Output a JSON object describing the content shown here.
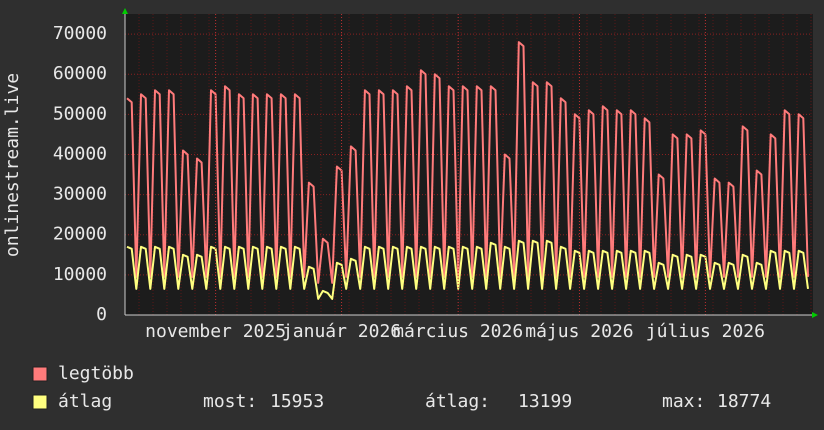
{
  "chart_data": {
    "type": "line",
    "y_label": "onlinestream.live",
    "categories": [
      null,
      null,
      null,
      null,
      null,
      null,
      null,
      null,
      null,
      null,
      null,
      null,
      null,
      null,
      null,
      null,
      null,
      null,
      null,
      "november 2025",
      null,
      null,
      null,
      null,
      null,
      null,
      null,
      null,
      null,
      null,
      null,
      null,
      null,
      null,
      null,
      null,
      null,
      null,
      null,
      null,
      null,
      null,
      null,
      null,
      null,
      null,
      "január 2026",
      null,
      null,
      null,
      null,
      null,
      null,
      null,
      null,
      null,
      null,
      null,
      null,
      null,
      null,
      null,
      null,
      null,
      null,
      null,
      null,
      null,
      null,
      null,
      null,
      "március 2026",
      null,
      null,
      null,
      null,
      null,
      null,
      null,
      null,
      null,
      null,
      null,
      null,
      null,
      null,
      null,
      null,
      null,
      null,
      null,
      null,
      null,
      null,
      null,
      null,
      null,
      "május 2026",
      null,
      null,
      null,
      null,
      null,
      null,
      null,
      null,
      null,
      null,
      null,
      null,
      null,
      null,
      null,
      null,
      null,
      null,
      null,
      null,
      null,
      null,
      null,
      null,
      null,
      null,
      "július 2026",
      null,
      null,
      null,
      null,
      null,
      null,
      null,
      null,
      null,
      null,
      null,
      null,
      null,
      null,
      null,
      null,
      null,
      null,
      null,
      null,
      null,
      null
    ],
    "series": [
      {
        "name": "legtöbb",
        "color": "#ff7b7b",
        "values": [
          54000,
          53000,
          9500,
          55000,
          54000,
          9500,
          56000,
          55000,
          9500,
          56000,
          55000,
          9500,
          41000,
          40000,
          9500,
          39000,
          38000,
          9500,
          56000,
          55000,
          9500,
          57000,
          56000,
          9500,
          55000,
          54000,
          9500,
          55000,
          54000,
          9500,
          55000,
          54000,
          9500,
          55000,
          54000,
          9500,
          55000,
          54000,
          9500,
          33000,
          32000,
          8000,
          19000,
          18000,
          8000,
          37000,
          36000,
          9500,
          42000,
          41000,
          9500,
          56000,
          55000,
          9500,
          56000,
          55000,
          9500,
          56000,
          55000,
          9500,
          57000,
          56000,
          9500,
          61000,
          60000,
          9500,
          60000,
          59000,
          9500,
          57000,
          56000,
          9500,
          57000,
          56000,
          9500,
          57000,
          56000,
          9500,
          57000,
          56000,
          9500,
          40000,
          39000,
          9500,
          68000,
          67000,
          9500,
          58000,
          57000,
          9500,
          58000,
          57000,
          9500,
          54000,
          53000,
          9500,
          50000,
          49000,
          9500,
          51000,
          50000,
          9500,
          52000,
          51000,
          9500,
          51000,
          50000,
          9500,
          51000,
          50000,
          9500,
          49000,
          48000,
          9500,
          35000,
          34000,
          9500,
          45000,
          44000,
          9500,
          45000,
          44000,
          9500,
          46000,
          45000,
          9500,
          34000,
          33000,
          9500,
          33000,
          32000,
          9500,
          47000,
          46000,
          9500,
          36000,
          35000,
          9500,
          45000,
          44000,
          9500,
          51000,
          50000,
          9500,
          50000,
          49000,
          9500
        ]
      },
      {
        "name": "átlag",
        "color": "#ffff80",
        "values": [
          17000,
          16500,
          6500,
          17000,
          16500,
          6500,
          17000,
          16500,
          6500,
          17000,
          16500,
          6500,
          15000,
          14500,
          6500,
          15000,
          14500,
          6500,
          17000,
          16500,
          6500,
          17000,
          16500,
          6500,
          17000,
          16500,
          6500,
          17000,
          16500,
          6500,
          17000,
          16500,
          6500,
          17000,
          16500,
          6500,
          17000,
          16500,
          6500,
          12000,
          11500,
          4000,
          6000,
          5500,
          4000,
          13000,
          12500,
          6500,
          14000,
          13500,
          6500,
          17000,
          16500,
          6500,
          17000,
          16500,
          6500,
          17000,
          16500,
          6500,
          17000,
          16500,
          6500,
          17000,
          16500,
          6500,
          17000,
          16500,
          6500,
          17000,
          16500,
          6500,
          17000,
          16500,
          6500,
          17000,
          16500,
          6500,
          18000,
          17500,
          6500,
          17000,
          16500,
          6500,
          18500,
          18000,
          6500,
          18500,
          18000,
          6500,
          18500,
          18000,
          6500,
          17000,
          16500,
          6500,
          16000,
          15500,
          6500,
          16000,
          15500,
          6500,
          16000,
          15500,
          6500,
          16000,
          15500,
          6500,
          16000,
          15500,
          6500,
          16000,
          15500,
          6500,
          13000,
          12500,
          6500,
          15000,
          14500,
          6500,
          15000,
          14500,
          6500,
          15000,
          14500,
          6500,
          13000,
          12500,
          6500,
          13000,
          12500,
          6500,
          15000,
          14500,
          6500,
          13000,
          12500,
          6500,
          16000,
          15500,
          6500,
          16000,
          15500,
          6500,
          16000,
          15500,
          6500
        ]
      }
    ],
    "ylim": [
      0,
      75000
    ],
    "yticks": [
      0,
      10000,
      20000,
      30000,
      40000,
      50000,
      60000,
      70000
    ],
    "grid": true,
    "stats": [
      {
        "label": "most:",
        "value": 15953
      },
      {
        "label": "átlag:",
        "value": 13199
      },
      {
        "label": "max:",
        "value": 18774
      }
    ]
  }
}
